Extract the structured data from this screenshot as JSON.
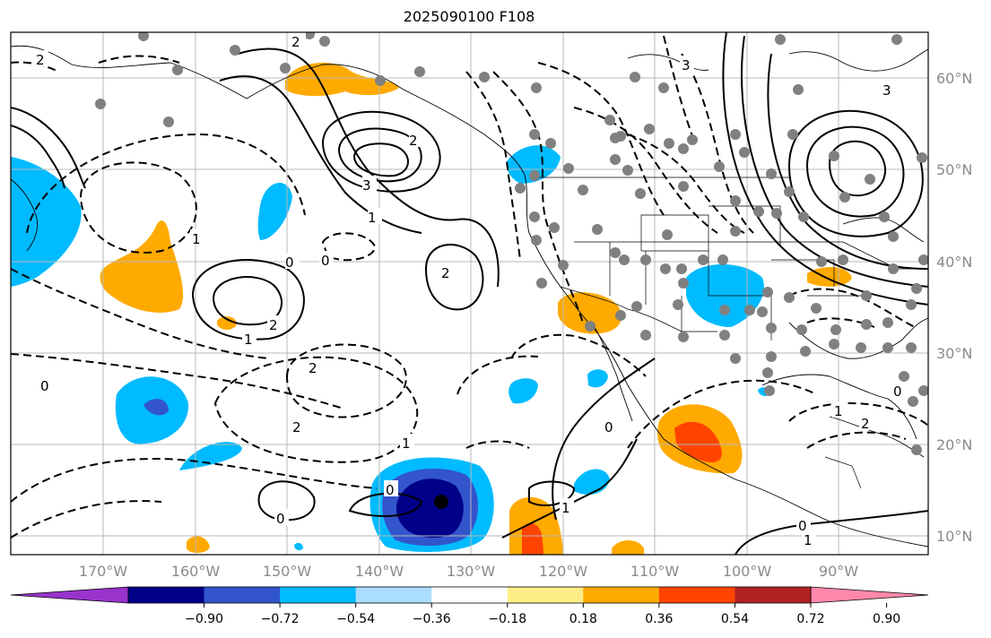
{
  "title": "2025090100 F108",
  "lon_labels": [
    "170°W",
    "160°W",
    "150°W",
    "140°W",
    "130°W",
    "120°W",
    "110°W",
    "100°W",
    "90°W"
  ],
  "lat_labels": [
    "60°N",
    "50°N",
    "40°N",
    "30°N",
    "20°N",
    "10°N"
  ],
  "colorbar": {
    "colors": [
      "#9933cc",
      "#000088",
      "#3355cc",
      "#00bbff",
      "#aaddff",
      "#ffffff",
      "#ffee88",
      "#ffaa00",
      "#ff4400",
      "#b22222",
      "#ff88aa"
    ],
    "ticks": [
      "−0.90",
      "−0.72",
      "−0.54",
      "−0.36",
      "−0.18",
      "0.18",
      "0.36",
      "0.54",
      "0.72",
      "0.90"
    ]
  },
  "contour_labels": [
    "2",
    "0",
    "3",
    "2",
    "1",
    "2",
    "0",
    "2",
    "1",
    "0",
    "2",
    "1",
    "0",
    "0",
    "1",
    "0",
    "2",
    "0",
    "2",
    "1",
    "1",
    "3",
    "0",
    "2",
    "1",
    "3"
  ]
}
